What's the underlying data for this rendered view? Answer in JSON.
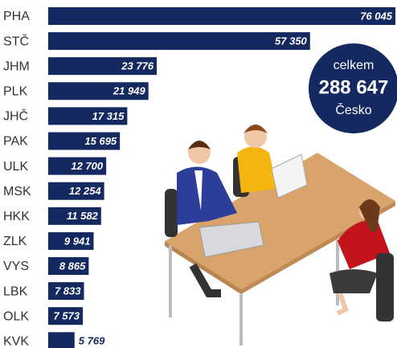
{
  "chart_data": {
    "type": "bar",
    "orientation": "horizontal",
    "categories": [
      "PHA",
      "STČ",
      "JHM",
      "PLK",
      "JHČ",
      "PAK",
      "ULK",
      "MSK",
      "HKK",
      "ZLK",
      "VYS",
      "LBK",
      "OLK",
      "KVK"
    ],
    "values": [
      76045,
      57350,
      23776,
      21949,
      17315,
      15695,
      12700,
      12254,
      11582,
      9941,
      8865,
      7833,
      7573,
      5769
    ],
    "value_labels": [
      "76 045",
      "57 350",
      "23 776",
      "21 949",
      "17 315",
      "15 695",
      "12 700",
      "12 254",
      "11 582",
      "9 941",
      "8 865",
      "7 833",
      "7 573",
      "5 769"
    ],
    "color": "#14295f",
    "annotation": {
      "top": "celkem",
      "total": "288 647",
      "bottom": "Česko"
    }
  }
}
